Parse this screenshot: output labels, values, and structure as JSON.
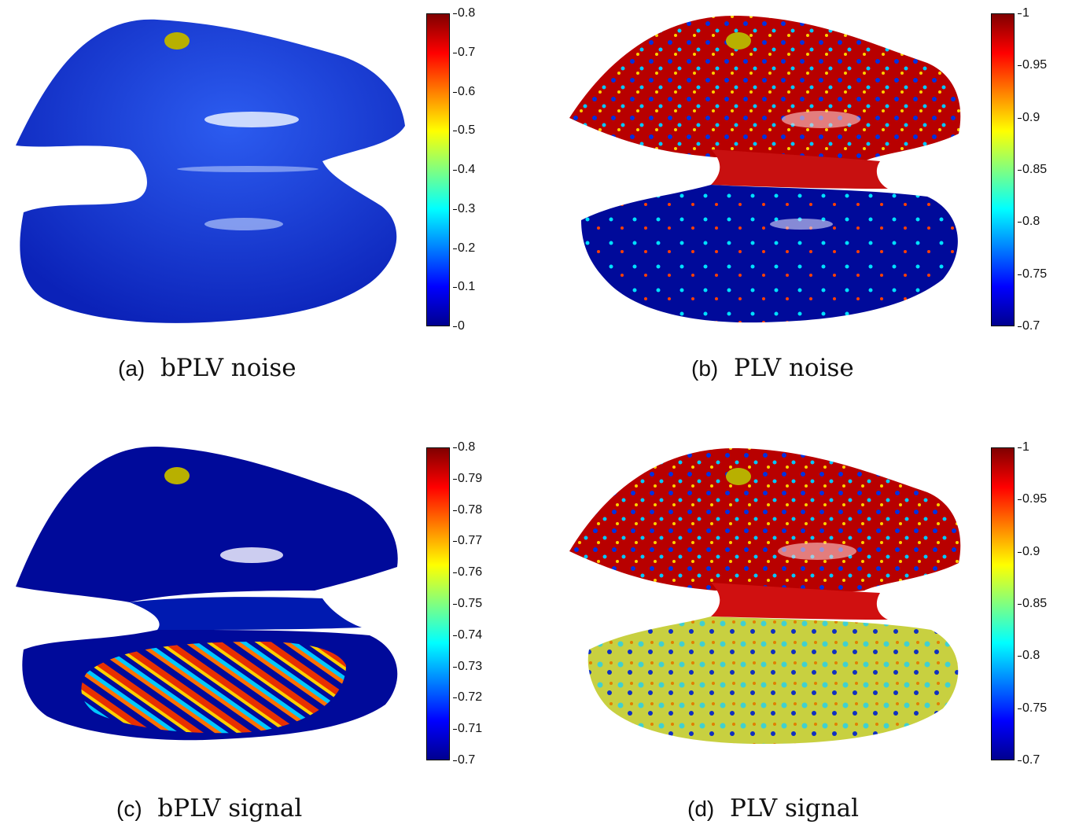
{
  "panels": [
    {
      "tag": "(a)",
      "title": "bPLV noise",
      "colorbar_ticks": [
        "0.8",
        "0.7",
        "0.6",
        "0.5",
        "0.4",
        "0.3",
        "0.2",
        "0.1",
        "0"
      ],
      "colormap": "jet",
      "upper_lobe": "uniform-blue",
      "lower_lobe": "uniform-blue"
    },
    {
      "tag": "(b)",
      "title": "PLV noise",
      "colorbar_ticks": [
        "1",
        "0.95",
        "0.9",
        "0.85",
        "0.8",
        "0.75",
        "0.7"
      ],
      "colormap": "jet",
      "upper_lobe": "mostly-red-mottled",
      "lower_lobe": "mostly-dark-blue-speckled"
    },
    {
      "tag": "(c)",
      "title": "bPLV signal",
      "colorbar_ticks": [
        "0.8",
        "0.79",
        "0.78",
        "0.77",
        "0.76",
        "0.75",
        "0.74",
        "0.73",
        "0.72",
        "0.71",
        "0.7"
      ],
      "colormap": "jet",
      "upper_lobe": "dark-blue",
      "lower_lobe": "red-yellow-streaks"
    },
    {
      "tag": "(d)",
      "title": "PLV signal",
      "colorbar_ticks": [
        "1",
        "0.95",
        "0.9",
        "0.85",
        "0.8",
        "0.75",
        "0.7"
      ],
      "colormap": "jet",
      "upper_lobe": "mostly-red-mottled",
      "lower_lobe": "yellow-cyan-mottled"
    }
  ],
  "colors": {
    "seed_marker": "#b8b000",
    "jet_dark_blue": "#00008f",
    "jet_blue": "#0a2ad0",
    "jet_red": "#c00000"
  }
}
